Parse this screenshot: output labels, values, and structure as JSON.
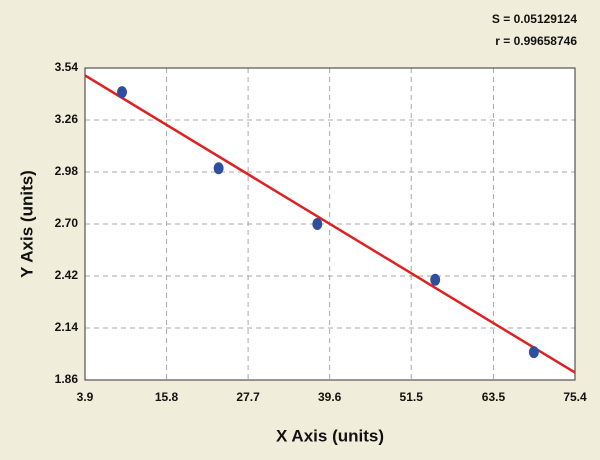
{
  "chart_data": {
    "type": "scatter",
    "annotations": [
      "S = 0.05129124",
      "r = 0.99658746"
    ],
    "x_label": "X Axis (units)",
    "y_label": "Y Axis (units)",
    "xlim": [
      3.9,
      75.4
    ],
    "xticks": [
      3.9,
      15.8,
      27.7,
      39.6,
      51.5,
      63.5,
      75.4
    ],
    "ylim": [
      1.86,
      3.54
    ],
    "yticks": [
      1.86,
      2.14,
      2.42,
      {
        "value": 2.7,
        "label": "2.70"
      },
      2.98,
      3.26,
      3.54
    ],
    "grid": true,
    "series": [
      {
        "color": "#2f4f9e",
        "x": [
          9.3,
          23.4,
          37.8,
          55.0,
          69.4
        ],
        "values": [
          3.41,
          3.0,
          2.7,
          2.4,
          2.01
        ]
      },
      {
        "color": "#e02020",
        "line": true,
        "x": [
          3.9,
          75.4
        ],
        "values": [
          3.5,
          1.9
        ]
      }
    ]
  }
}
